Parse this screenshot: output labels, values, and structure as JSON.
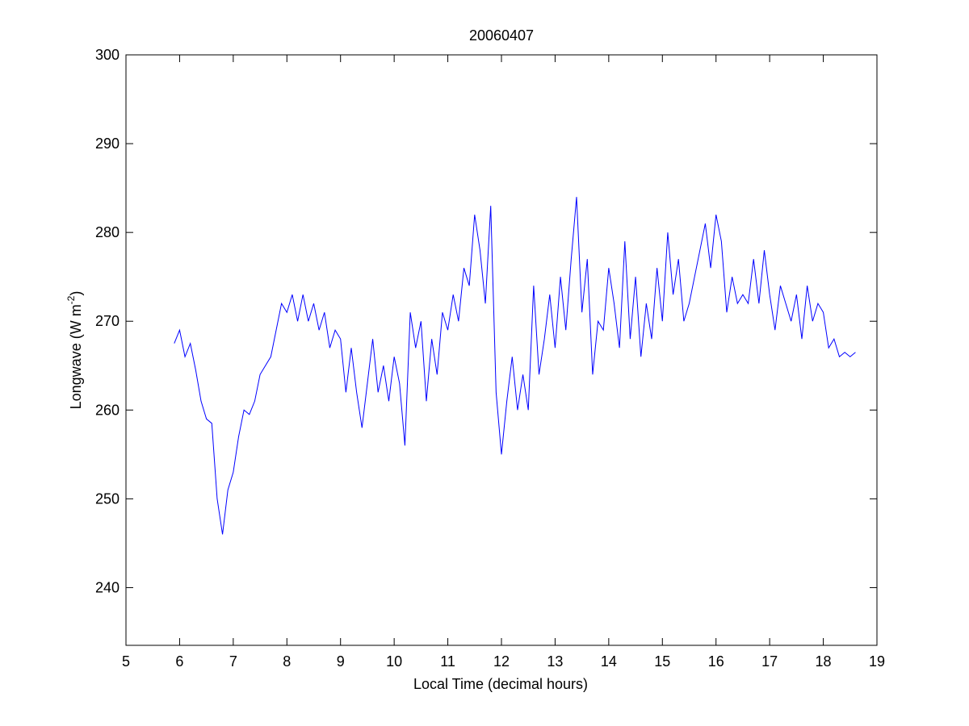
{
  "chart_data": {
    "type": "line",
    "title": "20060407",
    "xlabel": "Local Time (decimal hours)",
    "ylabel": {
      "text": "Longwave (W m",
      "superscript": "-2",
      "suffix": ")"
    },
    "xlim": [
      5,
      19
    ],
    "xticks": [
      5,
      6,
      7,
      8,
      9,
      10,
      11,
      12,
      13,
      14,
      15,
      16,
      17,
      18,
      19
    ],
    "ylim": [
      233.5,
      300
    ],
    "yticks": [
      240,
      250,
      260,
      270,
      280,
      290,
      300
    ],
    "grid": false,
    "x": [
      5.9,
      6.0,
      6.1,
      6.2,
      6.3,
      6.4,
      6.5,
      6.6,
      6.7,
      6.8,
      6.9,
      7.0,
      7.1,
      7.2,
      7.3,
      7.4,
      7.5,
      7.6,
      7.7,
      7.8,
      7.9,
      8.0,
      8.1,
      8.2,
      8.3,
      8.4,
      8.5,
      8.6,
      8.7,
      8.8,
      8.9,
      9.0,
      9.1,
      9.2,
      9.3,
      9.4,
      9.5,
      9.6,
      9.7,
      9.8,
      9.9,
      10.0,
      10.1,
      10.2,
      10.3,
      10.4,
      10.5,
      10.6,
      10.7,
      10.8,
      10.9,
      11.0,
      11.1,
      11.2,
      11.3,
      11.4,
      11.5,
      11.6,
      11.7,
      11.8,
      11.9,
      12.0,
      12.1,
      12.2,
      12.3,
      12.4,
      12.5,
      12.6,
      12.7,
      12.8,
      12.9,
      13.0,
      13.1,
      13.2,
      13.3,
      13.4,
      13.5,
      13.6,
      13.7,
      13.8,
      13.9,
      14.0,
      14.1,
      14.2,
      14.3,
      14.4,
      14.5,
      14.6,
      14.7,
      14.8,
      14.9,
      15.0,
      15.1,
      15.2,
      15.3,
      15.4,
      15.5,
      15.6,
      15.7,
      15.8,
      15.9,
      16.0,
      16.1,
      16.2,
      16.3,
      16.4,
      16.5,
      16.6,
      16.7,
      16.8,
      16.9,
      17.0,
      17.1,
      17.2,
      17.3,
      17.4,
      17.5,
      17.6,
      17.7,
      17.8,
      17.9,
      18.0,
      18.1,
      18.2,
      18.3,
      18.4,
      18.5,
      18.6
    ],
    "series": [
      {
        "color": "#0000ff",
        "values": [
          267.5,
          269,
          266,
          267.5,
          264.5,
          261,
          259,
          258.5,
          250,
          246,
          251,
          253,
          257,
          260,
          259.5,
          261,
          264,
          265,
          266,
          269,
          272,
          271,
          273,
          270,
          273,
          270,
          272,
          269,
          271,
          267,
          269,
          268,
          262,
          267,
          262,
          258,
          263,
          268,
          262,
          265,
          261,
          266,
          263,
          256,
          271,
          267,
          270,
          261,
          268,
          264,
          271,
          269,
          273,
          270,
          276,
          274,
          282,
          278,
          272,
          283,
          262,
          255,
          261,
          266,
          260,
          264,
          260,
          274,
          264,
          268,
          273,
          267,
          275,
          269,
          277,
          284,
          271,
          277,
          264,
          270,
          269,
          276,
          272,
          267,
          279,
          268,
          275,
          266,
          272,
          268,
          276,
          270,
          280,
          273,
          277,
          270,
          272,
          275,
          278,
          281,
          276,
          282,
          279,
          271,
          275,
          272,
          273,
          272,
          277,
          272,
          278,
          273,
          269,
          274,
          272,
          270,
          273,
          268,
          274,
          270,
          272,
          271,
          267,
          268,
          266,
          266.5,
          266,
          266.5
        ]
      }
    ]
  }
}
